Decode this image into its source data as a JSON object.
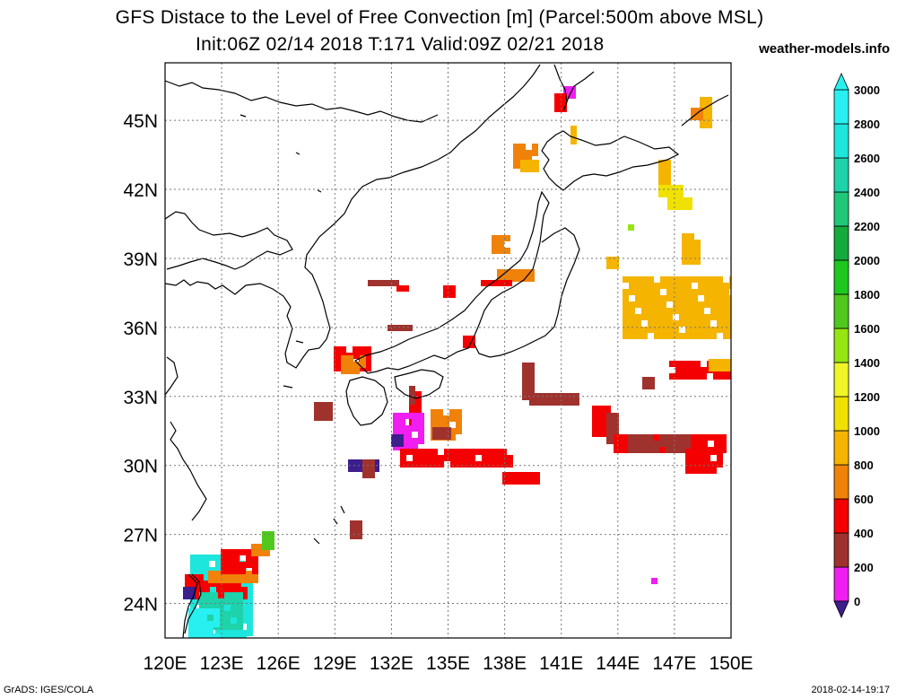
{
  "header": {
    "title_line1": "GFS Distace to the Level of Free Convection [m] (Parcel:500m above MSL)",
    "title_line2": "Init:06Z 02/14 2018 T:171 Valid:09Z 02/21 2018",
    "site": "weather-models.info"
  },
  "footer": {
    "left": "GrADS: IGES/COLA",
    "right": "2018-02-14-19:17"
  },
  "map": {
    "lon_range": [
      120,
      150
    ],
    "lat_range": [
      22.5,
      47.5
    ],
    "lon_ticks": [
      "120E",
      "123E",
      "126E",
      "129E",
      "132E",
      "135E",
      "138E",
      "141E",
      "144E",
      "147E",
      "150E"
    ],
    "lat_ticks": [
      "24N",
      "27N",
      "30N",
      "33N",
      "36N",
      "39N",
      "42N",
      "45N"
    ],
    "grid": "dotted"
  },
  "colorbar": {
    "labels": [
      "0",
      "200",
      "400",
      "600",
      "800",
      "1000",
      "1200",
      "1400",
      "1600",
      "1800",
      "2000",
      "2200",
      "2400",
      "2600",
      "2800",
      "3000"
    ],
    "colors": [
      "#3c1e8c",
      "#f01ef0",
      "#a0322d",
      "#f50000",
      "#f0820a",
      "#f5b400",
      "#f0e100",
      "#f0f528",
      "#96e614",
      "#50c81e",
      "#1ec81e",
      "#14aa3c",
      "#1ec878",
      "#1ed2aa",
      "#1ee6dc",
      "#28f0f0"
    ]
  }
}
